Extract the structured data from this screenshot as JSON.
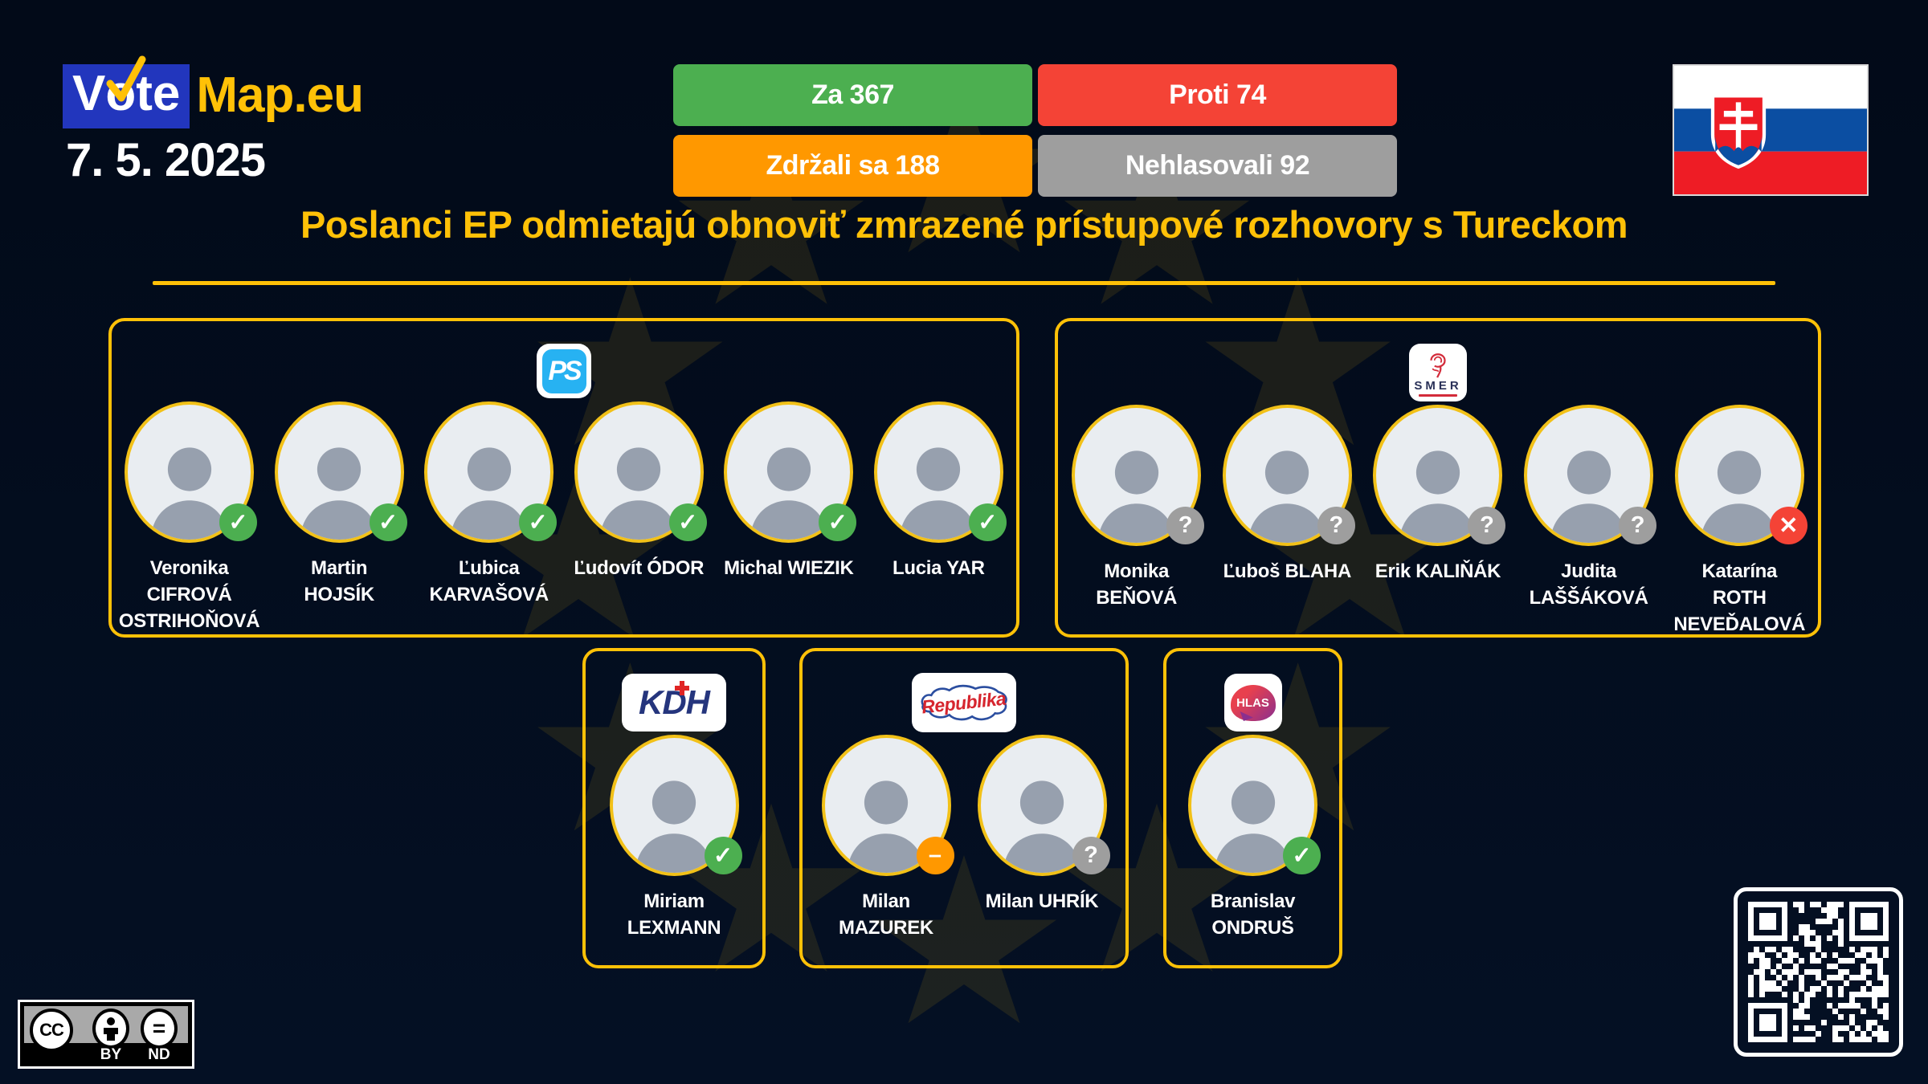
{
  "header": {
    "brand_v": "V",
    "brand_o": "o",
    "brand_te": "te",
    "brand_map": "Map.eu",
    "date": "7. 5. 2025"
  },
  "vote_summary": {
    "za": {
      "label": "Za 367",
      "color": "#4caf50"
    },
    "proti": {
      "label": "Proti 74",
      "color": "#f44336"
    },
    "zdrzali": {
      "label": "Zdržali sa 188",
      "color": "#ff9800"
    },
    "nehlasovali": {
      "label": "Nehlasovali 92",
      "color": "#9e9e9e"
    }
  },
  "headline": "Poslanci EP odmietajú obnoviť zmrazené prístupové rozhovory s Tureckom",
  "flag": "slovakia-flag",
  "status_styles": {
    "za": {
      "glyph": "✓",
      "color": "#4caf50"
    },
    "proti": {
      "glyph": "✕",
      "color": "#f44336"
    },
    "zdrzal": {
      "glyph": "–",
      "color": "#ff9800"
    },
    "nehlasoval": {
      "glyph": "?",
      "color": "#9e9e9e"
    }
  },
  "groups": [
    {
      "id": "ps",
      "party": "PS",
      "members": [
        {
          "lines": [
            "Veronika",
            "CIFROVÁ",
            "OSTRIHOŇOVÁ"
          ],
          "vote": "za"
        },
        {
          "lines": [
            "Martin",
            "HOJSÍK"
          ],
          "vote": "za"
        },
        {
          "lines": [
            "Ľubica",
            "KARVAŠOVÁ"
          ],
          "vote": "za"
        },
        {
          "lines": [
            "Ľudovít ÓDOR"
          ],
          "vote": "za"
        },
        {
          "lines": [
            "Michal WIEZIK"
          ],
          "vote": "za"
        },
        {
          "lines": [
            "Lucia YAR"
          ],
          "vote": "za"
        }
      ]
    },
    {
      "id": "smer",
      "party": "SMER",
      "members": [
        {
          "lines": [
            "Monika",
            "BEŇOVÁ"
          ],
          "vote": "nehlasoval"
        },
        {
          "lines": [
            "Ľuboš BLAHA"
          ],
          "vote": "nehlasoval"
        },
        {
          "lines": [
            "Erik KALIŇÁK"
          ],
          "vote": "nehlasoval"
        },
        {
          "lines": [
            "Judita",
            "LAŠŠÁKOVÁ"
          ],
          "vote": "nehlasoval"
        },
        {
          "lines": [
            "Katarína",
            "ROTH",
            "NEVEĎALOVÁ"
          ],
          "vote": "proti"
        }
      ]
    },
    {
      "id": "kdh",
      "party": "KDH",
      "members": [
        {
          "lines": [
            "Miriam",
            "LEXMANN"
          ],
          "vote": "za"
        }
      ]
    },
    {
      "id": "republika",
      "party": "Republika",
      "members": [
        {
          "lines": [
            "Milan",
            "MAZUREK"
          ],
          "vote": "zdrzal"
        },
        {
          "lines": [
            "Milan UHRÍK"
          ],
          "vote": "nehlasoval"
        }
      ]
    },
    {
      "id": "hlas",
      "party": "HLAS",
      "members": [
        {
          "lines": [
            "Branislav",
            "ONDRUŠ"
          ],
          "vote": "za"
        }
      ]
    }
  ],
  "license": {
    "cc": "CC",
    "by": "BY",
    "nd": "ND"
  },
  "colors": {
    "background": "#030e1f",
    "accent_gold": "#ffc107",
    "logo_blue": "#2236bd",
    "ps_blue": "#27b2f2",
    "smer_red": "#d32b3a",
    "kdh_navy": "#25357d",
    "republika_blue": "#2b4ea0",
    "hlas_red": "#e8404e"
  }
}
